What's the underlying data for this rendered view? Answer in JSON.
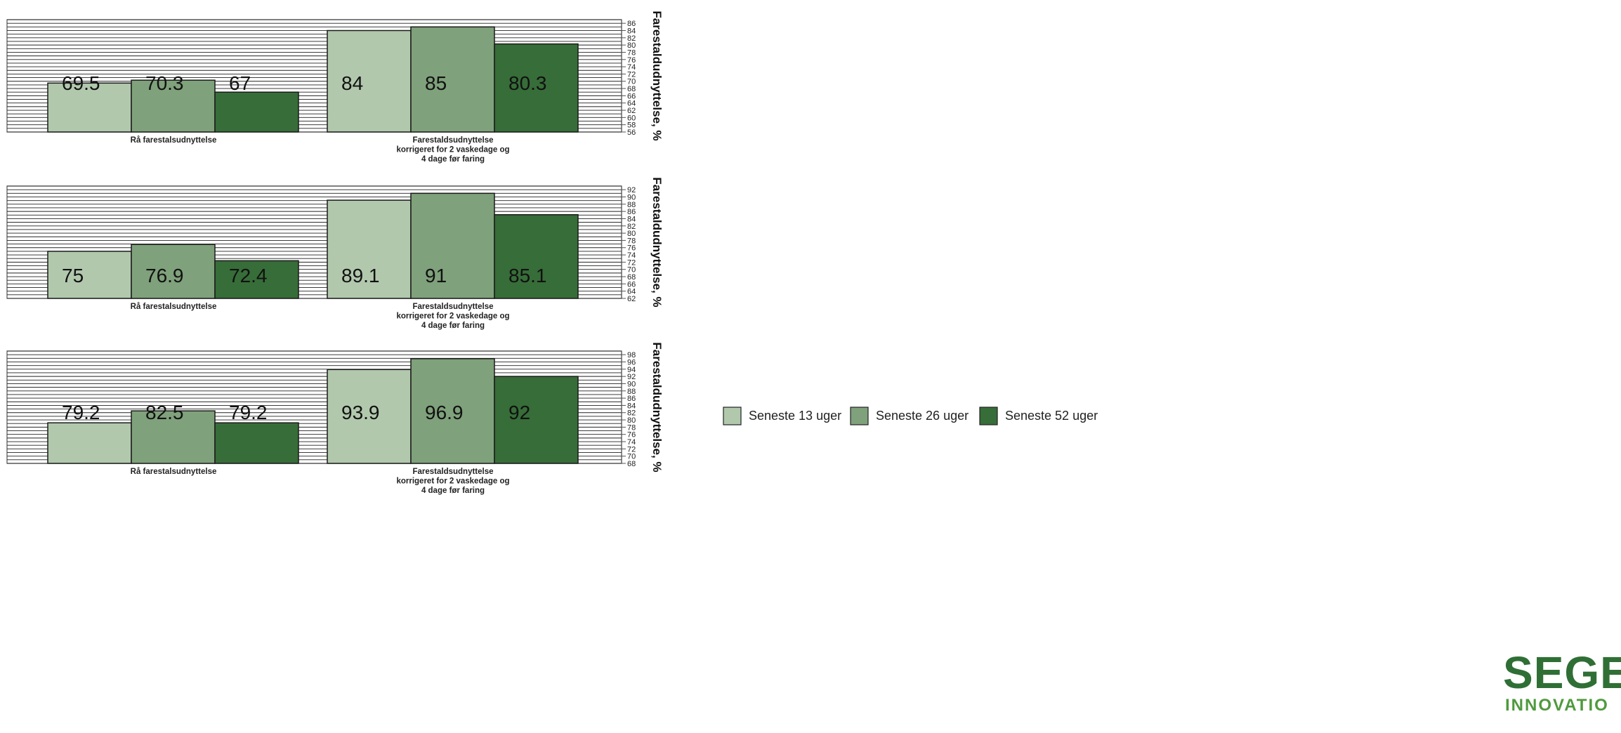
{
  "colors": {
    "s13": "#b1c8ad",
    "s26": "#7fa17b",
    "s52": "#376d38",
    "brand": "#2f6f35"
  },
  "legend": [
    {
      "label": "Seneste 13 uger",
      "color": "#b1c8ad"
    },
    {
      "label": "Seneste 26 uger",
      "color": "#7fa17b"
    },
    {
      "label": "Seneste 52 uger",
      "color": "#376d38"
    }
  ],
  "brand": {
    "name": "SEGES",
    "sub": "INNOVATIO"
  },
  "chart_data": [
    {
      "type": "bar",
      "categories": [
        "Rå farestalsudnyttelse",
        "Farestaldsudnyttelse\nkorrigeret for 2 vaskedage og\n4 dage før faring"
      ],
      "series": [
        {
          "name": "Seneste 13 uger",
          "values": [
            69.5,
            84
          ]
        },
        {
          "name": "Seneste 26 uger",
          "values": [
            70.3,
            85
          ]
        },
        {
          "name": "Seneste 52 uger",
          "values": [
            67,
            80.3
          ]
        }
      ],
      "ylabel": "Farestaldudnyttelse, %",
      "ylim": [
        56,
        87
      ],
      "yticks": [
        56,
        58,
        60,
        62,
        64,
        66,
        68,
        70,
        72,
        74,
        76,
        78,
        80,
        82,
        84,
        86
      ],
      "grid": true
    },
    {
      "type": "bar",
      "categories": [
        "Rå farestalsudnyttelse",
        "Farestaldsudnyttelse\nkorrigeret for 2 vaskedage og\n4 dage før faring"
      ],
      "series": [
        {
          "name": "Seneste 13 uger",
          "values": [
            75,
            89.1
          ]
        },
        {
          "name": "Seneste 26 uger",
          "values": [
            76.9,
            91
          ]
        },
        {
          "name": "Seneste 52 uger",
          "values": [
            72.4,
            85.1
          ]
        }
      ],
      "ylabel": "Farestaldudnyttelse, %",
      "ylim": [
        62,
        93
      ],
      "yticks": [
        62,
        64,
        66,
        68,
        70,
        72,
        74,
        76,
        78,
        80,
        82,
        84,
        86,
        88,
        90,
        92
      ],
      "grid": true
    },
    {
      "type": "bar",
      "categories": [
        "Rå farestalsudnyttelse",
        "Farestaldsudnyttelse\nkorrigeret for 2 vaskedage og\n4 dage før faring"
      ],
      "series": [
        {
          "name": "Seneste 13 uger",
          "values": [
            79.2,
            93.9
          ]
        },
        {
          "name": "Seneste 26 uger",
          "values": [
            82.5,
            96.9
          ]
        },
        {
          "name": "Seneste 52 uger",
          "values": [
            79.2,
            92
          ]
        }
      ],
      "ylabel": "Farestaldudnyttelse, %",
      "ylim": [
        68,
        99
      ],
      "yticks": [
        68,
        70,
        72,
        74,
        76,
        78,
        80,
        82,
        84,
        86,
        88,
        90,
        92,
        94,
        96,
        98
      ],
      "grid": true
    }
  ]
}
